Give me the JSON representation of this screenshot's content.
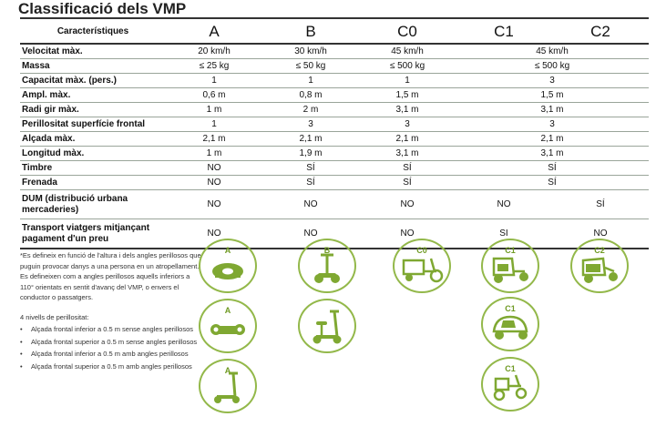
{
  "title": "Classificació dels VMP",
  "table": {
    "corner": "Característiques",
    "columns": [
      "A",
      "B",
      "C0",
      "C1",
      "C2"
    ],
    "rows": [
      {
        "label": "Velocitat màx.",
        "cells": [
          "20 km/h",
          "30 km/h",
          "45 km/h",
          "45 km/h"
        ],
        "spans": [
          1,
          1,
          1,
          2
        ]
      },
      {
        "label": "Massa",
        "cells": [
          "≤ 25 kg",
          "≤ 50 kg",
          "≤ 500 kg",
          "≤ 500 kg"
        ],
        "spans": [
          1,
          1,
          1,
          2
        ]
      },
      {
        "label": "Capacitat màx. (pers.)",
        "cells": [
          "1",
          "1",
          "1",
          "3"
        ],
        "spans": [
          1,
          1,
          1,
          2
        ]
      },
      {
        "label": "Ampl. màx.",
        "cells": [
          "0,6 m",
          "0,8 m",
          "1,5 m",
          "1,5 m"
        ],
        "spans": [
          1,
          1,
          1,
          2
        ]
      },
      {
        "label": "Radi gir màx.",
        "cells": [
          "1 m",
          "2 m",
          "3,1 m",
          "3,1 m"
        ],
        "spans": [
          1,
          1,
          1,
          2
        ]
      },
      {
        "label": "Perillositat superfície frontal",
        "cells": [
          "1",
          "3",
          "3",
          "3"
        ],
        "spans": [
          1,
          1,
          1,
          2
        ]
      },
      {
        "label": "Alçada màx.",
        "cells": [
          "2,1 m",
          "2,1 m",
          "2,1 m",
          "2,1 m"
        ],
        "spans": [
          1,
          1,
          1,
          2
        ]
      },
      {
        "label": "Longitud màx.",
        "cells": [
          "1 m",
          "1,9 m",
          "3,1 m",
          "3,1 m"
        ],
        "spans": [
          1,
          1,
          1,
          2
        ]
      },
      {
        "label": "Timbre",
        "cells": [
          "NO",
          "SÍ",
          "SÍ",
          "SÍ"
        ],
        "spans": [
          1,
          1,
          1,
          2
        ]
      },
      {
        "label": "Frenada",
        "cells": [
          "NO",
          "SÍ",
          "SÍ",
          "SÍ"
        ],
        "spans": [
          1,
          1,
          1,
          2
        ]
      },
      {
        "label": "DUM (distribució urbana mercaderies)",
        "cells": [
          "NO",
          "NO",
          "NO",
          "NO",
          "SÍ"
        ],
        "spans": [
          1,
          1,
          1,
          1,
          1
        ],
        "tall": true
      },
      {
        "label": "Transport viatgers mitjançant pagament d'un preu",
        "cells": [
          "NO",
          "NO",
          "NO",
          "SI",
          "NO"
        ],
        "spans": [
          1,
          1,
          1,
          1,
          1
        ],
        "tall": true
      }
    ]
  },
  "notes": {
    "footnote": "*Es defineix en funció de l'altura i dels angles perillosos que puguin provocar danys a una persona en un atropellament.  Es defineixen com a angles perillosos aquells inferiors a 110° orientats en sentit d'avanç del VMP, o envers el conductor o passatgers.",
    "levels_title": "4 nivells de perillositat:",
    "levels": [
      "Alçada frontal inferior a  0.5 m sense angles perillosos",
      "Alçada frontal superior a 0.5 m sense angles perillosos",
      "Alçada frontal inferior a 0.5 m amb angles perillosos",
      "Alçada frontal superior a 0.5 m amb angles perillosos"
    ]
  },
  "badges": [
    {
      "label": "A",
      "icon": "monowheel-icon"
    },
    {
      "label": "A",
      "icon": "hoverboard-icon"
    },
    {
      "label": "A",
      "icon": "kick-scooter-icon"
    },
    {
      "label": "B",
      "icon": "segway-icon"
    },
    {
      "label": "",
      "icon": "seated-scooter-icon"
    },
    {
      "label": "C0",
      "icon": "cargo-bike-icon"
    },
    {
      "label": "C1",
      "icon": "rickshaw-icon"
    },
    {
      "label": "C1",
      "icon": "enclosed-trike-icon"
    },
    {
      "label": "C1",
      "icon": "handcart-trike-icon"
    },
    {
      "label": "C2",
      "icon": "cargo-pedicab-icon"
    }
  ],
  "colors": {
    "badge": "#93b84a",
    "icon": "#7fa832"
  }
}
